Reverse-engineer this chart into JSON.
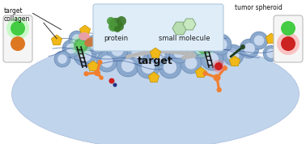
{
  "background_color": "#ffffff",
  "fig_width": 3.78,
  "fig_height": 1.78,
  "dpi": 100,
  "title_text": "target",
  "label_collagen": "collagen",
  "label_target": "target",
  "label_tumor": "tumor spheroid",
  "label_protein": "protein",
  "label_small_mol": "small molecule",
  "orange_color": "#f08030",
  "dark_green": "#3a7a3a",
  "light_green": "#a8d8a0",
  "blue_cell_outer": "#8aa8cc",
  "blue_cell_inner": "#c8d8ee",
  "tumor_base": "#c0d4ec",
  "tumor_edge": "#aabcdc",
  "yellow_pent": "#f0b818",
  "collagen_line": "#4060a0",
  "pink_blob": "#e8a0a8",
  "brown_blob": "#c87840",
  "red_dot": "#cc2020",
  "blue_dot": "#2040a0",
  "dark_line": "#1a2a1a",
  "indicator_bg": "#f0f0f0",
  "indicator_edge": "#aaaaaa",
  "legend_bg": "#ddeef8",
  "legend_edge": "#aabccc",
  "arrow_gray": "#c0c0c0"
}
